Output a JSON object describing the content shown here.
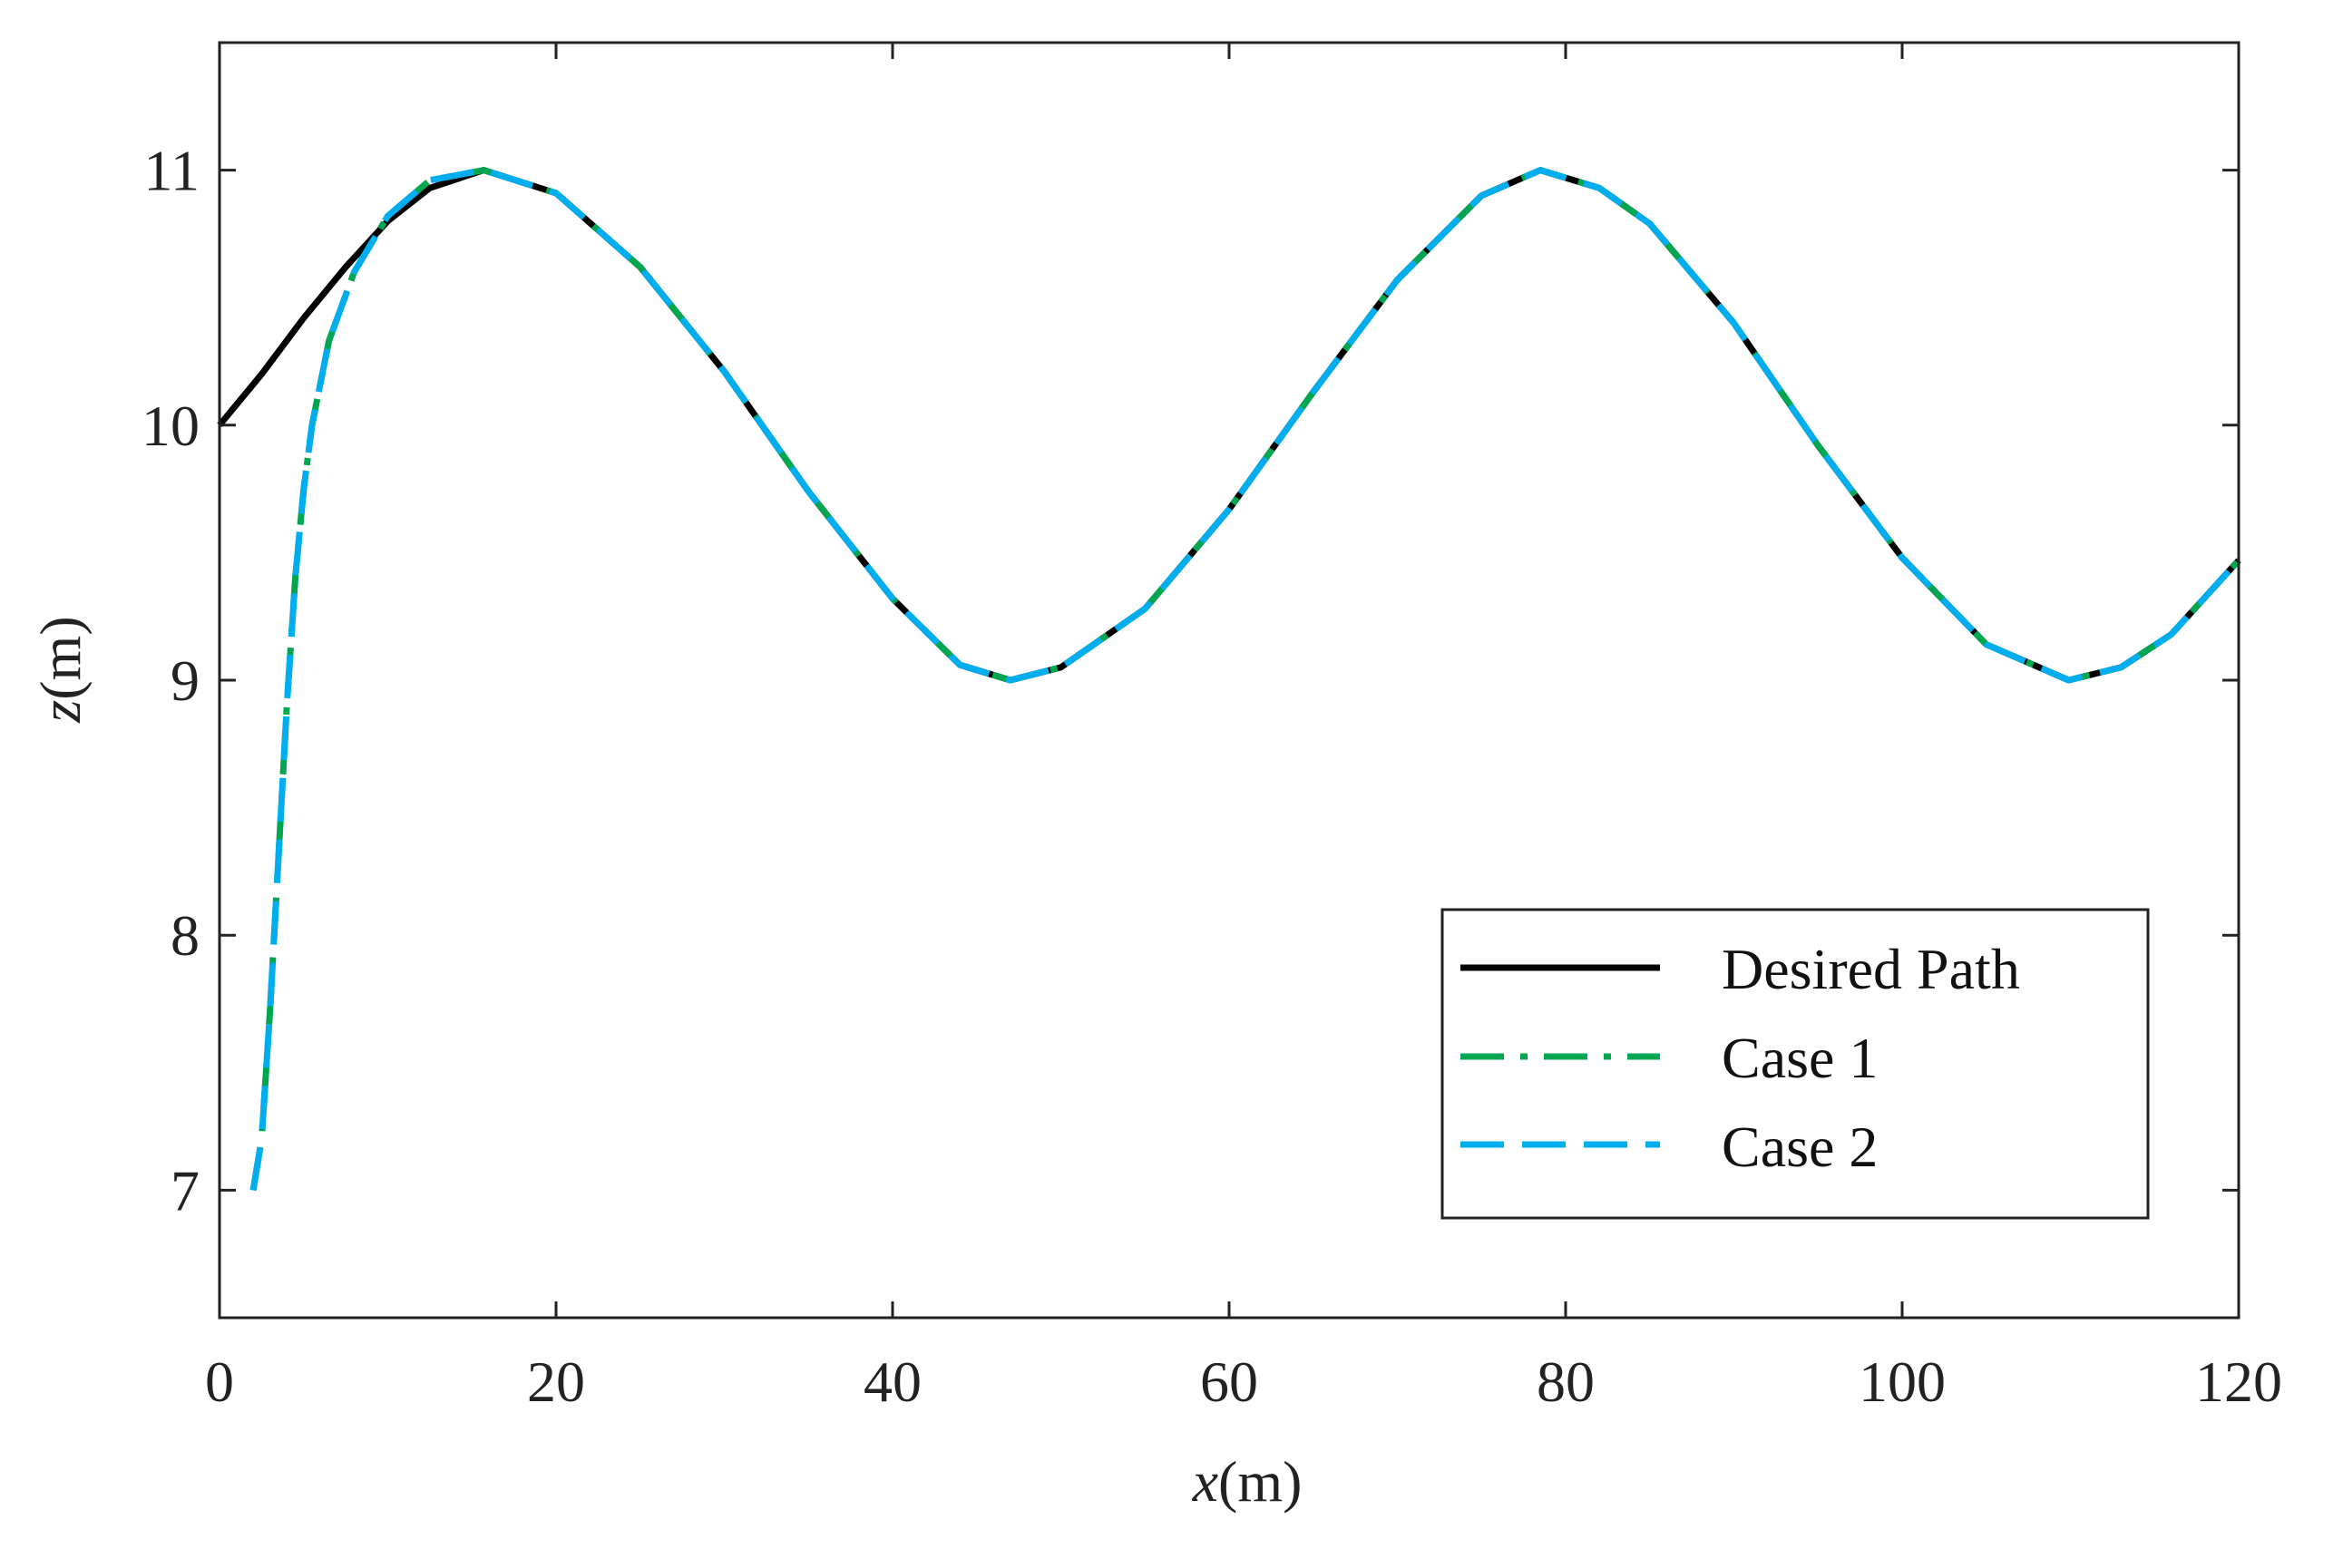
{
  "chart_data": {
    "type": "line",
    "title": "",
    "xlabel": {
      "var": "x",
      "unit": "(m)"
    },
    "ylabel": {
      "var": "z",
      "unit": "(m)"
    },
    "xlim": [
      0,
      120
    ],
    "ylim": [
      6.5,
      11.5
    ],
    "xticks": [
      0,
      20,
      40,
      60,
      80,
      100,
      120
    ],
    "yticks": [
      7,
      8,
      9,
      10,
      11
    ],
    "grid": false,
    "legend_position": "bottom-right",
    "series": [
      {
        "name": "Desired Path",
        "color": "#000000",
        "style": "solid",
        "x": [
          0,
          2.5,
          5,
          7.5,
          10,
          12.5,
          15.7,
          20,
          25,
          30,
          35,
          40,
          44,
          47,
          50,
          55,
          60,
          65,
          70,
          75,
          78.5,
          82,
          85,
          90,
          95,
          100,
          105,
          109.9,
          113,
          116,
          120
        ],
        "y": [
          10.0,
          10.2,
          10.42,
          10.62,
          10.8,
          10.93,
          11.0,
          10.91,
          10.62,
          10.21,
          9.74,
          9.32,
          9.06,
          9.0,
          9.05,
          9.28,
          9.67,
          10.13,
          10.57,
          10.9,
          11.0,
          10.93,
          10.79,
          10.4,
          9.92,
          9.48,
          9.14,
          9.0,
          9.05,
          9.18,
          9.47
        ]
      },
      {
        "name": "Case 1",
        "color": "#00A650",
        "style": "dashdot",
        "x": [
          2.0,
          2.5,
          3.0,
          3.5,
          4.0,
          4.5,
          5.0,
          5.5,
          6.5,
          8.0,
          10.0,
          12.5,
          15.7,
          20,
          25,
          30,
          35,
          40,
          44,
          47,
          50,
          55,
          60,
          65,
          70,
          75,
          78.5,
          82,
          85,
          90,
          95,
          100,
          105,
          109.9,
          113,
          116,
          120
        ],
        "y": [
          7.0,
          7.2,
          7.7,
          8.3,
          8.9,
          9.4,
          9.75,
          10.0,
          10.33,
          10.6,
          10.82,
          10.96,
          11.0,
          10.91,
          10.62,
          10.21,
          9.74,
          9.32,
          9.06,
          9.0,
          9.05,
          9.28,
          9.67,
          10.13,
          10.57,
          10.9,
          11.0,
          10.93,
          10.79,
          10.4,
          9.92,
          9.48,
          9.14,
          9.0,
          9.05,
          9.18,
          9.47
        ]
      },
      {
        "name": "Case 2",
        "color": "#00AEEF",
        "style": "dashed",
        "x": [
          2.0,
          2.5,
          3.0,
          3.5,
          4.0,
          4.5,
          5.0,
          5.5,
          6.5,
          8.0,
          10.0,
          12.5,
          15.7,
          20,
          25,
          30,
          35,
          40,
          44,
          47,
          50,
          55,
          60,
          65,
          70,
          75,
          78.5,
          82,
          85,
          90,
          95,
          100,
          105,
          109.9,
          113,
          116,
          120
        ],
        "y": [
          7.0,
          7.2,
          7.7,
          8.3,
          8.9,
          9.4,
          9.75,
          10.0,
          10.33,
          10.6,
          10.82,
          10.96,
          11.0,
          10.91,
          10.62,
          10.21,
          9.74,
          9.32,
          9.06,
          9.0,
          9.05,
          9.28,
          9.67,
          10.13,
          10.57,
          10.9,
          11.0,
          10.93,
          10.79,
          10.4,
          9.92,
          9.48,
          9.14,
          9.0,
          9.05,
          9.18,
          9.47
        ]
      }
    ]
  }
}
